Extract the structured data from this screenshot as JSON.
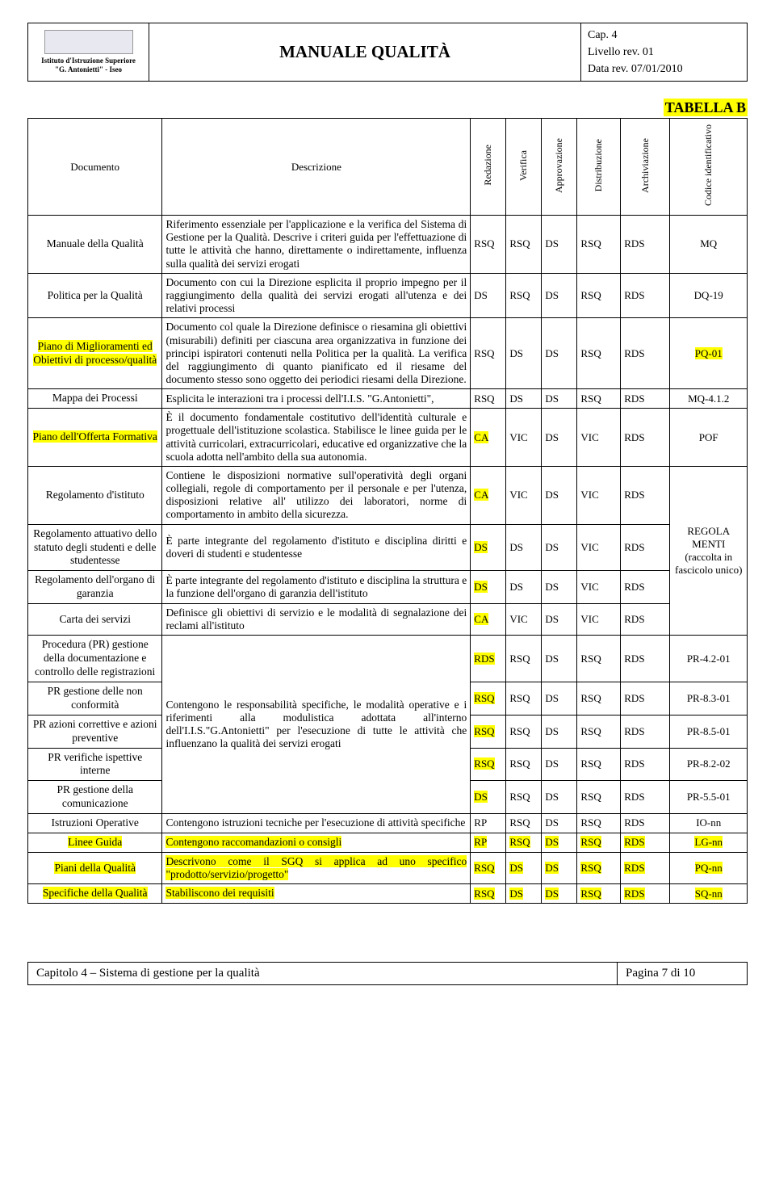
{
  "header": {
    "institute_line1": "Istituto d'Istruzione Superiore",
    "institute_line2": "\"G. Antonietti\" - Iseo",
    "title": "MANUALE QUALITÀ",
    "meta_cap": "Cap. 4",
    "meta_livello": "Livello rev. 01",
    "meta_data": "Data rev. 07/01/2010"
  },
  "tabella_label": "TABELLA B",
  "columns": {
    "documento": "Documento",
    "descrizione": "Descrizione",
    "redazione": "Redazione",
    "verifica": "Verifica",
    "approvazione": "Approvazione",
    "distribuzione": "Distribuzione",
    "archiviazione": "Archiviazione",
    "codice": "Codice identificativo"
  },
  "rows": [
    {
      "doc": "Manuale della Qualità",
      "doc_hl": false,
      "desc": "Riferimento essenziale per l'applicazione e la verifica del Sistema di Gestione per la Qualità. Descrive i criteri guida per l'effettuazione di tutte le attività che hanno, direttamente o indirettamente, influenza sulla qualità dei servizi erogati",
      "c": [
        "RSQ",
        "RSQ",
        "DS",
        "RSQ",
        "RDS",
        "MQ"
      ],
      "hl": [
        false,
        false,
        false,
        false,
        false,
        false
      ]
    },
    {
      "doc": "Politica per la Qualità",
      "doc_hl": false,
      "desc": "Documento con cui la Direzione esplicita il proprio impegno per il raggiungimento della qualità dei servizi erogati all'utenza e dei relativi processi",
      "c": [
        "DS",
        "RSQ",
        "DS",
        "RSQ",
        "RDS",
        "DQ-19"
      ],
      "hl": [
        false,
        false,
        false,
        false,
        false,
        false
      ]
    },
    {
      "doc": "Piano di Miglioramenti ed Obiettivi di processo/qualità",
      "doc_hl": true,
      "desc": "Documento col quale la Direzione definisce o riesamina gli obiettivi (misurabili) definiti per ciascuna area organizzativa in funzione dei principi ispiratori contenuti nella Politica per la qualità. La verifica del raggiungimento di quanto pianificato ed il riesame del documento stesso sono oggetto dei periodici riesami della Direzione.",
      "c": [
        "RSQ",
        "DS",
        "DS",
        "RSQ",
        "RDS",
        "PQ-01"
      ],
      "hl": [
        false,
        false,
        false,
        false,
        false,
        true
      ]
    },
    {
      "doc": "Mappa dei Processi",
      "doc_hl": false,
      "desc": "Esplicita le interazioni tra i processi dell'I.I.S. \"G.Antonietti\",",
      "c": [
        "RSQ",
        "DS",
        "DS",
        "RSQ",
        "RDS",
        "MQ-4.1.2"
      ],
      "hl": [
        false,
        false,
        false,
        false,
        false,
        false
      ]
    },
    {
      "doc": "Piano dell'Offerta Formativa",
      "doc_hl": true,
      "desc": "È il documento fondamentale costitutivo dell'identità culturale e progettuale dell'istituzione scolastica. Stabilisce le linee guida per le attività curricolari, extracurricolari, educative ed organizzative che la scuola adotta nell'ambito della sua autonomia.",
      "c": [
        "CA",
        "VIC",
        "DS",
        "VIC",
        "RDS",
        "POF"
      ],
      "hl": [
        true,
        false,
        false,
        false,
        false,
        false
      ]
    }
  ],
  "merged_rows": [
    {
      "doc": "Regolamento d'istituto",
      "doc_hl": false,
      "desc": "Contiene le disposizioni normative sull'operatività degli organi collegiali, regole di comportamento per il personale e per l'utenza, disposizioni relative all' utilizzo dei laboratori, norme di comportamento in ambito della sicurezza.",
      "c": [
        "CA",
        "VIC",
        "DS",
        "VIC",
        "RDS"
      ],
      "hl": [
        true,
        false,
        false,
        false,
        false
      ]
    },
    {
      "doc": "Regolamento attuativo dello statuto degli studenti e delle studentesse",
      "doc_hl": false,
      "desc": "È parte integrante del regolamento d'istituto e disciplina diritti e doveri di studenti e studentesse",
      "c": [
        "DS",
        "DS",
        "DS",
        "VIC",
        "RDS"
      ],
      "hl": [
        true,
        false,
        false,
        false,
        false
      ]
    },
    {
      "doc": "Regolamento dell'organo di garanzia",
      "doc_hl": false,
      "desc": "È parte integrante del regolamento d'istituto e disciplina la struttura e la funzione dell'organo di garanzia dell'istituto",
      "c": [
        "DS",
        "DS",
        "DS",
        "VIC",
        "RDS"
      ],
      "hl": [
        true,
        false,
        false,
        false,
        false
      ]
    },
    {
      "doc": "Carta dei servizi",
      "doc_hl": false,
      "desc": "Definisce gli obiettivi di servizio e le modalità di segnalazione dei reclami all'istituto",
      "c": [
        "CA",
        "VIC",
        "DS",
        "VIC",
        "RDS"
      ],
      "hl": [
        true,
        false,
        false,
        false,
        false
      ]
    }
  ],
  "merged_code_text": "REGOLA MENTI (raccolta in fascicolo unico)",
  "pr_rows_head": {
    "doc": "Procedura (PR) gestione della documentazione e controllo delle registrazioni",
    "c": [
      "RDS",
      "RSQ",
      "DS",
      "RSQ",
      "RDS",
      "PR-4.2-01"
    ],
    "hl": [
      true,
      false,
      false,
      false,
      false,
      false
    ]
  },
  "pr_rows": [
    {
      "doc": "PR gestione delle non conformità",
      "c": [
        "RSQ",
        "RSQ",
        "DS",
        "RSQ",
        "RDS",
        "PR-8.3-01"
      ],
      "hl": [
        true,
        false,
        false,
        false,
        false,
        false
      ]
    },
    {
      "doc": "PR azioni correttive e azioni preventive",
      "c": [
        "RSQ",
        "RSQ",
        "DS",
        "RSQ",
        "RDS",
        "PR-8.5-01"
      ],
      "hl": [
        true,
        false,
        false,
        false,
        false,
        false
      ]
    },
    {
      "doc": "PR verifiche ispettive interne",
      "c": [
        "RSQ",
        "RSQ",
        "DS",
        "RSQ",
        "RDS",
        "PR-8.2-02"
      ],
      "hl": [
        true,
        false,
        false,
        false,
        false,
        false
      ]
    },
    {
      "doc": "PR gestione della comunicazione",
      "c": [
        "DS",
        "RSQ",
        "DS",
        "RSQ",
        "RDS",
        "PR-5.5-01"
      ],
      "hl": [
        true,
        false,
        false,
        false,
        false,
        false
      ]
    }
  ],
  "pr_desc": "Contengono le responsabilità specifiche, le modalità operative e i riferimenti alla modulistica adottata all'interno dell'I.I.S.\"G.Antonietti\" per l'esecuzione di tutte le attività che influenzano la qualità dei servizi erogati",
  "tail_rows": [
    {
      "doc": "Istruzioni Operative",
      "doc_hl": false,
      "desc": "Contengono istruzioni tecniche per l'esecuzione di attività specifiche",
      "c": [
        "RP",
        "RSQ",
        "DS",
        "RSQ",
        "RDS",
        "IO-nn"
      ],
      "hl": [
        false,
        false,
        false,
        false,
        false,
        false
      ]
    },
    {
      "doc": "Linee Guida",
      "doc_hl": true,
      "desc": "Contengono raccomandazioni o consigli",
      "desc_hl": true,
      "c": [
        "RP",
        "RSQ",
        "DS",
        "RSQ",
        "RDS",
        "LG-nn"
      ],
      "hl": [
        true,
        true,
        true,
        true,
        true,
        true
      ]
    },
    {
      "doc": "Piani della Qualità",
      "doc_hl": true,
      "desc": "Descrivono come il SGQ si applica ad uno specifico \"prodotto/servizio/progetto\"",
      "desc_hl": true,
      "c": [
        "RSQ",
        "DS",
        "DS",
        "RSQ",
        "RDS",
        "PQ-nn"
      ],
      "hl": [
        true,
        true,
        true,
        true,
        true,
        true
      ]
    },
    {
      "doc": "Specifiche della Qualità",
      "doc_hl": true,
      "desc": "Stabiliscono dei requisiti",
      "desc_hl": true,
      "c": [
        "RSQ",
        "DS",
        "DS",
        "RSQ",
        "RDS",
        "SQ-nn"
      ],
      "hl": [
        true,
        true,
        true,
        true,
        true,
        true
      ]
    }
  ],
  "footer": {
    "left": "Capitolo 4 – Sistema di gestione per la qualità",
    "right": "Pagina 7 di 10"
  }
}
